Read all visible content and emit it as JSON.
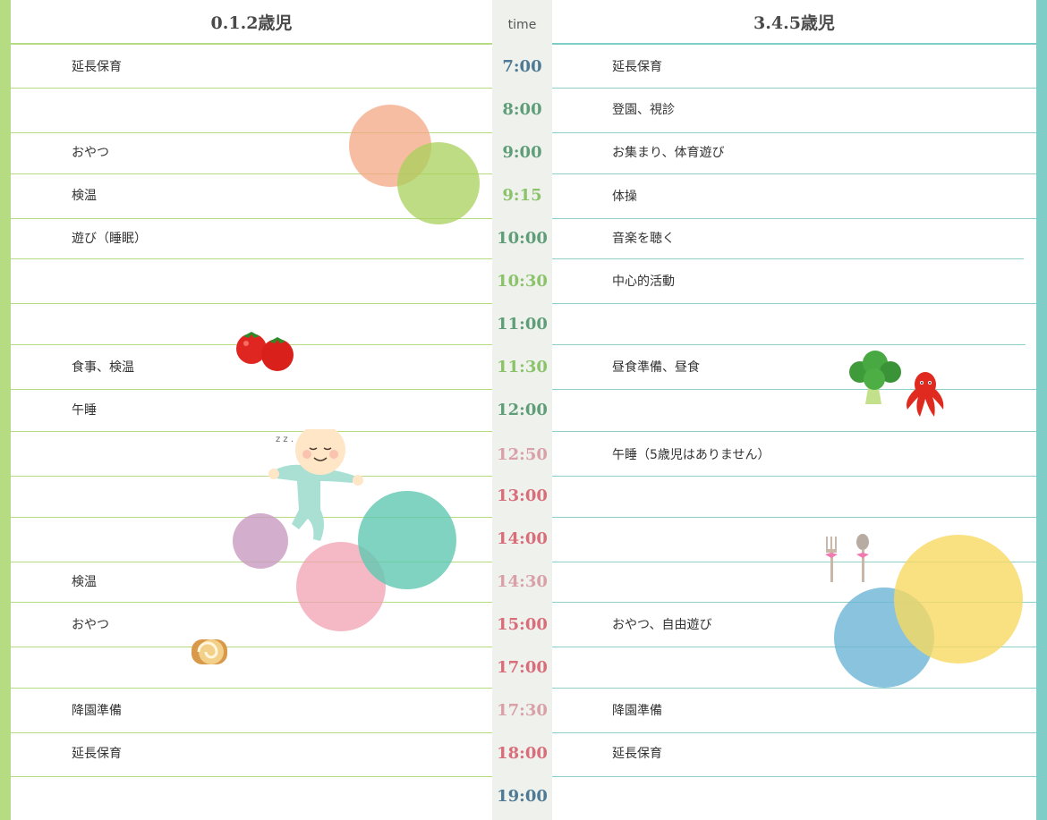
{
  "headers": {
    "left": "0.1.2歳児",
    "time": "time",
    "right": "3.4.5歳児"
  },
  "times": [
    "7:00",
    "8:00",
    "9:00",
    "9:15",
    "10:00",
    "10:30",
    "11:00",
    "11:30",
    "12:00",
    "12:50",
    "13:00",
    "14:00",
    "14:30",
    "15:00",
    "17:00",
    "17:30",
    "18:00",
    "19:00"
  ],
  "left_activities": {
    "r0": "延長保育",
    "r1": "おやつ",
    "r2": "検温",
    "r3": "遊び（睡眠）",
    "r4": "食事、検温",
    "r5": "午睡",
    "r6": "検温",
    "r7": "おやつ",
    "r8": "降園準備",
    "r9": "延長保育"
  },
  "right_activities": {
    "r0": "延長保育",
    "r1": "登園、視診",
    "r2": "お集まり、体育遊び",
    "r3": "体操",
    "r4": "音楽を聴く",
    "r5": "中心的活動",
    "r6": "昼食準備、昼食",
    "r7": "午睡（5歳児はありません）",
    "r8": "おやつ、自由遊び",
    "r9": "降園準備",
    "r10": "延長保育"
  },
  "colors": {
    "left_accent": "#b5dc82",
    "right_accent": "#7ecdc6",
    "time_blue": "#4f7a95",
    "time_green": "#5f9e78",
    "time_lightgreen": "#8cc36a",
    "time_red": "#d96d7a",
    "time_pink": "#d9a0a8"
  },
  "icons": [
    "tomato-icon",
    "sleeping-baby-icon",
    "roll-cake-icon",
    "broccoli-icon",
    "octopus-sausage-icon",
    "fork-spoon-icon"
  ]
}
